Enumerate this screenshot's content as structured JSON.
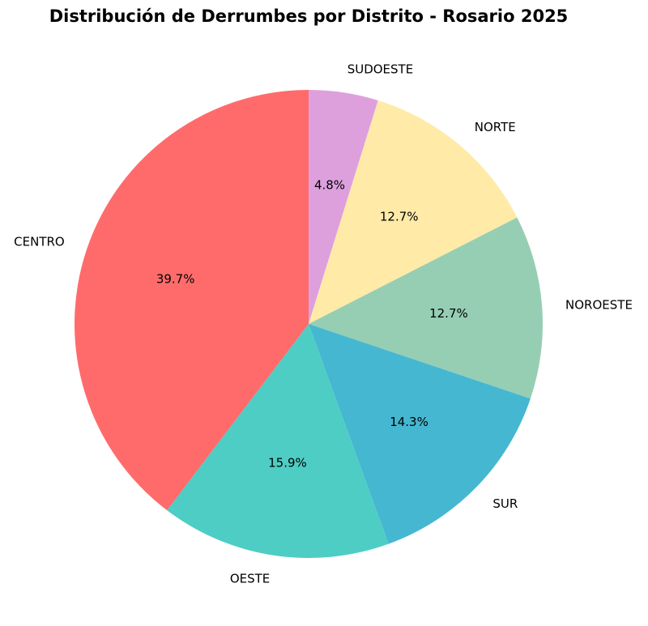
{
  "chart_data": {
    "type": "pie",
    "title": "Distribución de Derrumbes por Distrito - Rosario 2025",
    "start_angle_deg": 90,
    "direction": "clockwise",
    "slices": [
      {
        "label": "SUDOESTE",
        "value": 4.8,
        "pct_label": "4.8%",
        "color": "#DDA0DD"
      },
      {
        "label": "NORTE",
        "value": 12.7,
        "pct_label": "12.7%",
        "color": "#FFEAA7"
      },
      {
        "label": "NOROESTE",
        "value": 12.7,
        "pct_label": "12.7%",
        "color": "#96CEB4"
      },
      {
        "label": "SUR",
        "value": 14.3,
        "pct_label": "14.3%",
        "color": "#45B7D1"
      },
      {
        "label": "OESTE",
        "value": 15.9,
        "pct_label": "15.9%",
        "color": "#4ECDC4"
      },
      {
        "label": "CENTRO",
        "value": 39.7,
        "pct_label": "39.7%",
        "color": "#FF6B6B"
      }
    ]
  }
}
